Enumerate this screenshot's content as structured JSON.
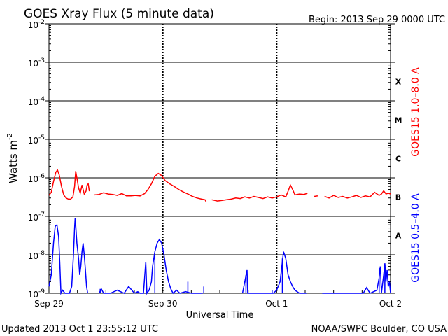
{
  "chart_data": {
    "type": "line",
    "title": "GOES Xray Flux (5 minute data)",
    "begin_label": "Begin:  2013 Sep 29 0000 UTC",
    "ylabel": "Watts m",
    "ylabel_superscript": "-2",
    "xlabel": "Universal Time",
    "y_scale": "log",
    "ylim": [
      1e-09,
      0.01
    ],
    "y_ticks": [
      {
        "exp": -2,
        "base": "10",
        "sup": "-2"
      },
      {
        "exp": -3,
        "base": "10",
        "sup": "-3"
      },
      {
        "exp": -4,
        "base": "10",
        "sup": "-4"
      },
      {
        "exp": -5,
        "base": "10",
        "sup": "-5"
      },
      {
        "exp": -6,
        "base": "10",
        "sup": "-6"
      },
      {
        "exp": -7,
        "base": "10",
        "sup": "-7"
      },
      {
        "exp": -8,
        "base": "10",
        "sup": "-8"
      },
      {
        "exp": -9,
        "base": "10",
        "sup": "-9"
      }
    ],
    "xlim_days": [
      0,
      3
    ],
    "x_ticks": [
      {
        "day": 0,
        "label": "Sep 29"
      },
      {
        "day": 1,
        "label": "Sep 30"
      },
      {
        "day": 2,
        "label": "Oct 1"
      },
      {
        "day": 3,
        "label": "Oct 2"
      }
    ],
    "flare_classes": [
      {
        "label": "X",
        "exp": -3.5
      },
      {
        "label": "M",
        "exp": -4.5
      },
      {
        "label": "C",
        "exp": -5.5
      },
      {
        "label": "B",
        "exp": -6.5
      },
      {
        "label": "A",
        "exp": -7.5
      }
    ],
    "grid": true,
    "series": [
      {
        "name": "GOES15 1.0–8.0 A",
        "color": "#ff0000",
        "points": [
          [
            0.0,
            3.5e-07
          ],
          [
            0.02,
            4.2e-07
          ],
          [
            0.04,
            8e-07
          ],
          [
            0.06,
            1.4e-06
          ],
          [
            0.075,
            1.6e-06
          ],
          [
            0.09,
            1.2e-06
          ],
          [
            0.11,
            6e-07
          ],
          [
            0.13,
            3.6e-07
          ],
          [
            0.15,
            3e-07
          ],
          [
            0.17,
            2.8e-07
          ],
          [
            0.19,
            2.8e-07
          ],
          [
            0.21,
            3.2e-07
          ],
          [
            0.225,
            6e-07
          ],
          [
            0.235,
            1.5e-06
          ],
          [
            0.245,
            1e-06
          ],
          [
            0.26,
            5.5e-07
          ],
          [
            0.275,
            4e-07
          ],
          [
            0.29,
            6.5e-07
          ],
          [
            0.3,
            5e-07
          ],
          [
            0.31,
            3.8e-07
          ],
          [
            0.325,
            4.5e-07
          ],
          [
            0.335,
            6.5e-07
          ],
          [
            0.345,
            7e-07
          ],
          [
            0.355,
            4.5e-07
          ],
          [
            0.36,
            null
          ],
          [
            0.4,
            3.6e-07
          ],
          [
            0.44,
            3.7e-07
          ],
          [
            0.48,
            4.1e-07
          ],
          [
            0.52,
            3.8e-07
          ],
          [
            0.56,
            3.7e-07
          ],
          [
            0.6,
            3.5e-07
          ],
          [
            0.64,
            3.9e-07
          ],
          [
            0.68,
            3.4e-07
          ],
          [
            0.72,
            3.4e-07
          ],
          [
            0.76,
            3.5e-07
          ],
          [
            0.8,
            3.4e-07
          ],
          [
            0.84,
            3.9e-07
          ],
          [
            0.87,
            5e-07
          ],
          [
            0.9,
            7e-07
          ],
          [
            0.93,
            1.1e-06
          ],
          [
            0.96,
            1.3e-06
          ],
          [
            0.99,
            1.15e-06
          ],
          [
            1.02,
            8.5e-07
          ],
          [
            1.06,
            7e-07
          ],
          [
            1.1,
            6e-07
          ],
          [
            1.14,
            5e-07
          ],
          [
            1.18,
            4.3e-07
          ],
          [
            1.22,
            3.8e-07
          ],
          [
            1.26,
            3.3e-07
          ],
          [
            1.3,
            3e-07
          ],
          [
            1.34,
            2.8e-07
          ],
          [
            1.37,
            2.7e-07
          ],
          [
            1.38,
            2.4e-07
          ],
          [
            1.4,
            null
          ],
          [
            1.43,
            2.7e-07
          ],
          [
            1.48,
            2.5e-07
          ],
          [
            1.52,
            2.6e-07
          ],
          [
            1.56,
            2.7e-07
          ],
          [
            1.6,
            2.8e-07
          ],
          [
            1.64,
            3e-07
          ],
          [
            1.68,
            2.9e-07
          ],
          [
            1.72,
            3.2e-07
          ],
          [
            1.76,
            3e-07
          ],
          [
            1.8,
            3.3e-07
          ],
          [
            1.84,
            3.1e-07
          ],
          [
            1.88,
            2.9e-07
          ],
          [
            1.92,
            3.2e-07
          ],
          [
            1.96,
            3e-07
          ],
          [
            2.0,
            3.2e-07
          ],
          [
            2.04,
            3.6e-07
          ],
          [
            2.08,
            3.2e-07
          ],
          [
            2.1,
            4.5e-07
          ],
          [
            2.12,
            6.5e-07
          ],
          [
            2.14,
            5e-07
          ],
          [
            2.16,
            3.6e-07
          ],
          [
            2.2,
            3.8e-07
          ],
          [
            2.24,
            3.7e-07
          ],
          [
            2.27,
            4e-07
          ],
          [
            2.29,
            null
          ],
          [
            2.33,
            3.3e-07
          ],
          [
            2.36,
            3.4e-07
          ],
          [
            2.38,
            null
          ],
          [
            2.42,
            3.3e-07
          ],
          [
            2.46,
            3e-07
          ],
          [
            2.5,
            3.5e-07
          ],
          [
            2.54,
            3.1e-07
          ],
          [
            2.58,
            3.3e-07
          ],
          [
            2.62,
            3e-07
          ],
          [
            2.66,
            3.2e-07
          ],
          [
            2.7,
            3.5e-07
          ],
          [
            2.74,
            3.1e-07
          ],
          [
            2.78,
            3.4e-07
          ],
          [
            2.82,
            3.2e-07
          ],
          [
            2.86,
            4.2e-07
          ],
          [
            2.9,
            3.5e-07
          ],
          [
            2.92,
            3.8e-07
          ],
          [
            2.94,
            4.6e-07
          ],
          [
            2.96,
            3.8e-07
          ],
          [
            2.98,
            4e-07
          ],
          [
            3.0,
            3.8e-07
          ]
        ]
      },
      {
        "name": "GOES15 0.5–4.0 A",
        "color": "#0000ff",
        "points": [
          [
            0.0,
            1.5e-09
          ],
          [
            0.02,
            3e-09
          ],
          [
            0.04,
            2e-08
          ],
          [
            0.055,
            5.5e-08
          ],
          [
            0.07,
            6e-08
          ],
          [
            0.085,
            3e-08
          ],
          [
            0.095,
            6e-09
          ],
          [
            0.105,
            1e-09
          ],
          [
            0.12,
            1.2e-09
          ],
          [
            0.14,
            1e-09
          ],
          [
            0.16,
            1e-09
          ],
          [
            0.18,
            1e-09
          ],
          [
            0.2,
            1.5e-09
          ],
          [
            0.215,
            1e-08
          ],
          [
            0.225,
            5e-08
          ],
          [
            0.23,
            9e-08
          ],
          [
            0.235,
            6e-08
          ],
          [
            0.245,
            2e-08
          ],
          [
            0.26,
            8e-09
          ],
          [
            0.27,
            3e-09
          ],
          [
            0.28,
            5e-09
          ],
          [
            0.29,
            1.2e-08
          ],
          [
            0.3,
            2e-08
          ],
          [
            0.31,
            1e-08
          ],
          [
            0.32,
            4e-09
          ],
          [
            0.33,
            1.5e-09
          ],
          [
            0.34,
            1e-09
          ],
          [
            0.36,
            null
          ],
          [
            0.44,
            1e-09
          ],
          [
            0.46,
            1.3e-09
          ],
          [
            0.48,
            1e-09
          ],
          [
            0.54,
            1e-09
          ],
          [
            0.6,
            1.2e-09
          ],
          [
            0.66,
            1e-09
          ],
          [
            0.7,
            1.5e-09
          ],
          [
            0.75,
            1e-09
          ],
          [
            0.78,
            1.1e-09
          ],
          [
            0.8,
            1e-09
          ],
          [
            0.83,
            1e-09
          ],
          [
            0.85,
            6.5e-09
          ],
          [
            0.86,
            1e-09
          ],
          [
            0.88,
            1.2e-09
          ],
          [
            0.9,
            2e-09
          ],
          [
            0.91,
            5e-09
          ],
          [
            0.93,
            1.2e-08
          ],
          [
            0.95,
            2e-08
          ],
          [
            0.97,
            2.5e-08
          ],
          [
            0.99,
            2e-08
          ],
          [
            1.01,
            1e-08
          ],
          [
            1.03,
            4e-09
          ],
          [
            1.05,
            2e-09
          ],
          [
            1.07,
            1.3e-09
          ],
          [
            1.09,
            1e-09
          ],
          [
            1.12,
            1.2e-09
          ],
          [
            1.15,
            1e-09
          ],
          [
            1.2,
            1.1e-09
          ],
          [
            1.25,
            1e-09
          ],
          [
            1.3,
            1e-09
          ],
          [
            1.35,
            1e-09
          ],
          [
            1.4,
            null
          ],
          [
            1.7,
            1e-09
          ],
          [
            1.74,
            4e-09
          ],
          [
            1.745,
            1e-09
          ],
          [
            1.8,
            1e-09
          ],
          [
            1.9,
            1e-09
          ],
          [
            1.97,
            1e-09
          ],
          [
            2.0,
            1.2e-09
          ],
          [
            2.03,
            2e-09
          ],
          [
            2.06,
            1.2e-08
          ],
          [
            2.08,
            8e-09
          ],
          [
            2.1,
            3e-09
          ],
          [
            2.12,
            2e-09
          ],
          [
            2.14,
            1.5e-09
          ],
          [
            2.16,
            1.2e-09
          ],
          [
            2.2,
            1e-09
          ],
          [
            2.26,
            1e-09
          ],
          [
            2.29,
            null
          ],
          [
            2.4,
            1e-09
          ],
          [
            2.5,
            1e-09
          ],
          [
            2.6,
            1e-09
          ],
          [
            2.7,
            1e-09
          ],
          [
            2.76,
            1e-09
          ],
          [
            2.79,
            1.4e-09
          ],
          [
            2.82,
            1e-09
          ],
          [
            2.88,
            1.2e-09
          ],
          [
            2.9,
            2.5e-09
          ],
          [
            2.91,
            5e-09
          ],
          [
            2.92,
            1e-09
          ],
          [
            2.94,
            3e-09
          ],
          [
            2.95,
            6e-09
          ],
          [
            2.96,
            2e-09
          ],
          [
            2.97,
            4e-09
          ],
          [
            2.98,
            1.5e-09
          ],
          [
            2.99,
            2e-09
          ],
          [
            3.0,
            1e-09
          ]
        ],
        "spikes": [
          [
            0.45,
            1.3e-09
          ],
          [
            0.93,
            1e-08
          ],
          [
            1.22,
            2e-09
          ],
          [
            1.36,
            1.5e-09
          ],
          [
            1.73,
            3e-09
          ],
          [
            1.96,
            1.2e-09
          ],
          [
            2.05,
            8e-09
          ],
          [
            2.9,
            4.5e-09
          ],
          [
            2.95,
            5.5e-09
          ]
        ]
      }
    ],
    "footer_left": "Updated 2013 Oct  1 23:55:12 UTC",
    "footer_right": "NOAA/SWPC Boulder, CO USA"
  }
}
